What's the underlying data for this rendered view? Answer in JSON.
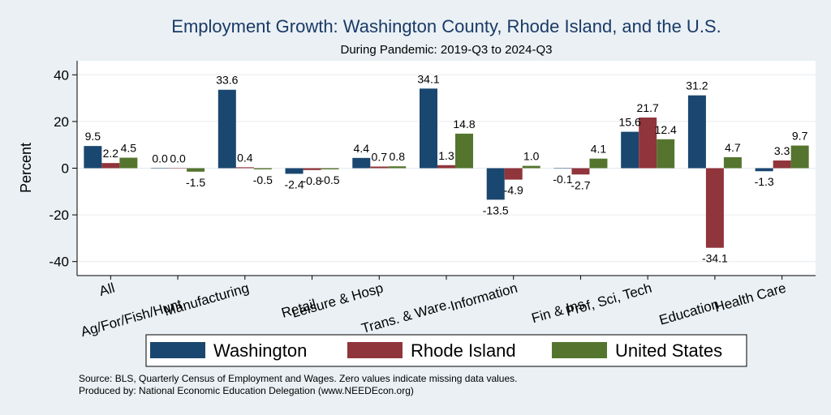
{
  "chart_data": {
    "type": "bar",
    "title": "Employment Growth: Washington County, Rhode Island, and the U.S.",
    "subtitle": "During Pandemic: 2019-Q3 to 2024-Q3",
    "ylabel": "Percent",
    "ylim": [
      -46,
      46
    ],
    "yticks": [
      -40,
      -20,
      0,
      20,
      40
    ],
    "categories": [
      "All",
      "Ag/For/Fish/Hunt",
      "Manufacturing",
      "Retail",
      "Leisure & Hosp",
      "Trans. & Ware.",
      "Information",
      "Fin & Ins",
      "Prof, Sci, Tech",
      "Education",
      "Health Care"
    ],
    "series": [
      {
        "name": "Washington",
        "color": "#1a476f",
        "values": [
          9.5,
          0.0,
          33.6,
          -2.4,
          4.4,
          34.1,
          -13.5,
          -0.1,
          15.6,
          31.2,
          -1.3
        ]
      },
      {
        "name": "Rhode Island",
        "color": "#90353b",
        "values": [
          2.2,
          0.0,
          0.4,
          -0.8,
          0.7,
          1.3,
          -4.9,
          -2.7,
          21.7,
          -34.1,
          3.3
        ]
      },
      {
        "name": "United States",
        "color": "#55752f",
        "values": [
          4.5,
          -1.5,
          -0.5,
          -0.5,
          0.8,
          14.8,
          1.0,
          4.1,
          12.4,
          4.7,
          9.7
        ]
      }
    ],
    "legend_position": "bottom"
  },
  "footer": {
    "source": "Source: BLS, Quarterly Census of Employment and Wages. Zero values indicate missing data values.",
    "produced": "Produced by: National Economic Education Delegation (www.NEEDEcon.org)"
  }
}
